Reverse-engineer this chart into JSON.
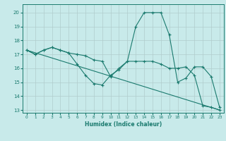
{
  "title": "",
  "xlabel": "Humidex (Indice chaleur)",
  "background_color": "#c8eaea",
  "grid_color": "#b0cccc",
  "line_color": "#1a7a6e",
  "xlim": [
    -0.5,
    23.5
  ],
  "ylim": [
    12.8,
    20.6
  ],
  "yticks": [
    13,
    14,
    15,
    16,
    17,
    18,
    19,
    20
  ],
  "xticks": [
    0,
    1,
    2,
    3,
    4,
    5,
    6,
    7,
    8,
    9,
    10,
    11,
    12,
    13,
    14,
    15,
    16,
    17,
    18,
    19,
    20,
    21,
    22,
    23
  ],
  "line1_x": [
    0,
    1,
    2,
    3,
    4,
    5,
    6,
    7,
    8,
    9,
    10,
    11,
    12,
    13,
    14,
    15,
    16,
    17,
    18,
    19,
    20,
    21,
    22,
    23
  ],
  "line1_y": [
    17.3,
    17.0,
    17.3,
    17.5,
    17.3,
    17.1,
    16.3,
    15.5,
    14.9,
    14.8,
    15.5,
    15.9,
    16.5,
    16.5,
    16.5,
    16.5,
    16.3,
    16.0,
    16.0,
    16.1,
    15.5,
    13.3,
    13.2,
    13.0
  ],
  "line2_x": [
    0,
    1,
    2,
    3,
    4,
    5,
    6,
    7,
    8,
    9,
    10,
    11,
    12,
    13,
    14,
    15,
    16,
    17,
    18,
    19,
    20,
    21,
    22,
    23
  ],
  "line2_y": [
    17.3,
    17.0,
    17.3,
    17.5,
    17.3,
    17.1,
    17.0,
    16.9,
    16.6,
    16.5,
    15.4,
    16.0,
    16.5,
    19.0,
    20.0,
    20.0,
    20.0,
    18.4,
    15.0,
    15.3,
    16.1,
    16.1,
    15.4,
    13.2
  ],
  "line3_x": [
    0,
    23
  ],
  "line3_y": [
    17.3,
    13.0
  ]
}
